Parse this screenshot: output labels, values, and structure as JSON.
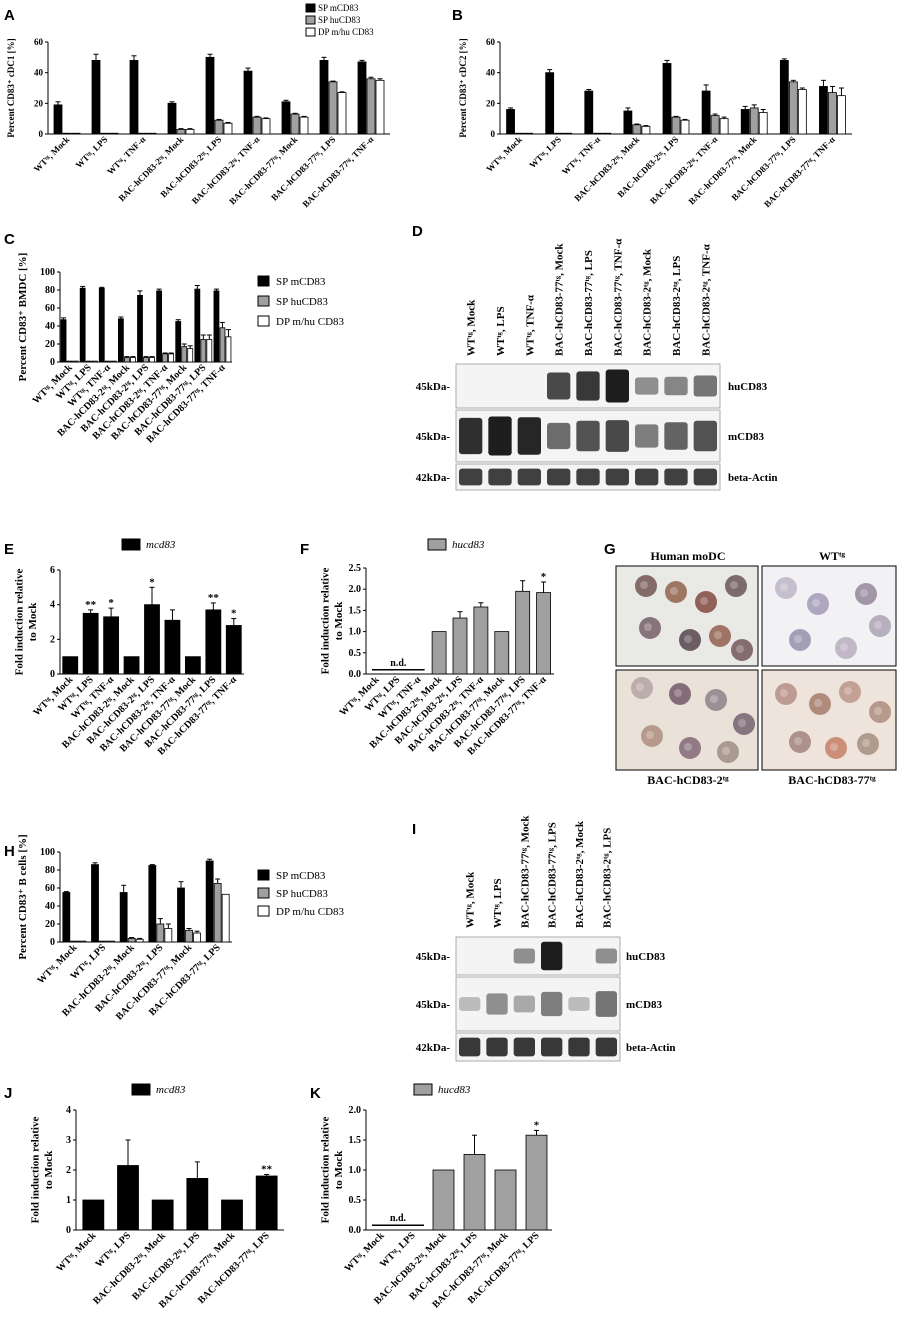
{
  "legend_items": {
    "sp_m": "SP mCD83",
    "sp_hu": "SP huCD83",
    "dp": "DP m/hu CD83",
    "mcd83": "mcd83",
    "hucd83": "hucd83"
  },
  "colors": {
    "sp_m": "#000000",
    "sp_hu": "#a0a0a0",
    "dp": "#ffffff"
  },
  "chart_data": [
    {
      "panel": "A",
      "type": "bar",
      "ylabel": "Percent CD83⁺ cDC1 [%]",
      "ylim": [
        0,
        60
      ],
      "yticks": [
        0,
        20,
        40,
        60
      ],
      "categories": [
        "WTᵗᵍ, Mock",
        "WTᵗᵍ, LPS",
        "WTᵗᵍ, TNF-α",
        "BAC-hCD83-2ᵗᵍ, Mock",
        "BAC-hCD83-2ᵗᵍ, LPS",
        "BAC-hCD83-2ᵗᵍ, TNF-α",
        "BAC-hCD83-77ᵗᵍ, Mock",
        "BAC-hCD83-77ᵗᵍ, LPS",
        "BAC-hCD83-77ᵗᵍ, TNF-α"
      ],
      "series": [
        {
          "name": "SP mCD83",
          "values": [
            19,
            48,
            48,
            20,
            50,
            41,
            21,
            48,
            47
          ],
          "err": [
            2,
            4,
            3,
            1,
            2,
            2,
            1,
            2,
            1
          ]
        },
        {
          "name": "SP huCD83",
          "values": [
            0.5,
            0.5,
            0.5,
            3,
            9,
            11,
            13,
            34,
            36
          ],
          "err": [
            0,
            0,
            0,
            0.5,
            0.5,
            0.5,
            0.5,
            0.5,
            1
          ]
        },
        {
          "name": "DP m/hu CD83",
          "values": [
            0.5,
            0.5,
            0.5,
            3,
            7,
            10,
            11,
            27,
            35
          ],
          "err": [
            0,
            0,
            0,
            0.5,
            0.5,
            0.5,
            0.5,
            0.5,
            1
          ]
        }
      ]
    },
    {
      "panel": "B",
      "type": "bar",
      "ylabel": "Percent CD83⁺ cDC2 [%]",
      "ylim": [
        0,
        60
      ],
      "yticks": [
        0,
        20,
        40,
        60
      ],
      "categories": [
        "WTᵗᵍ, Mock",
        "WTᵗᵍ, LPS",
        "WTᵗᵍ, TNF-α",
        "BAC-hCD83-2ᵗᵍ, Mock",
        "BAC-hCD83-2ᵗᵍ, LPS",
        "BAC-hCD83-2ᵗᵍ, TNF-α",
        "BAC-hCD83-77ᵗᵍ, Mock",
        "BAC-hCD83-77ᵗᵍ, LPS",
        "BAC-hCD83-77ᵗᵍ, TNF-α"
      ],
      "series": [
        {
          "name": "SP mCD83",
          "values": [
            16,
            40,
            28,
            15,
            46,
            28,
            16,
            48,
            31
          ],
          "err": [
            1,
            2,
            1,
            2,
            2,
            4,
            2,
            1,
            4
          ]
        },
        {
          "name": "SP huCD83",
          "values": [
            0.5,
            0.5,
            0.5,
            6,
            11,
            12,
            17,
            34,
            27
          ],
          "err": [
            0,
            0,
            0,
            0.5,
            0.5,
            1,
            2,
            1,
            4
          ]
        },
        {
          "name": "DP m/hu CD83",
          "values": [
            0.5,
            0.5,
            0.5,
            5,
            9,
            10,
            14,
            29,
            25
          ],
          "err": [
            0,
            0,
            0,
            0.5,
            0.5,
            1,
            2,
            1,
            5
          ]
        }
      ]
    },
    {
      "panel": "C",
      "type": "bar",
      "ylabel": "Percent CD83⁺ BMDC [%]",
      "ylim": [
        0,
        100
      ],
      "yticks": [
        0,
        20,
        40,
        60,
        80,
        100
      ],
      "categories": [
        "WTᵗᵍ, Mock",
        "WTᵗᵍ, LPS",
        "WTᵗᵍ, TNF-α",
        "BAC-hCD83-2ᵗᵍ, Mock",
        "BAC-hCD83-2ᵗᵍ, LPS",
        "BAC-hCD83-2ᵗᵍ, TNF-α",
        "BAC-hCD83-77ᵗᵍ, Mock",
        "BAC-hCD83-77ᵗᵍ, LPS",
        "BAC-hCD83-77ᵗᵍ, TNF-α"
      ],
      "series": [
        {
          "name": "SP mCD83",
          "values": [
            47,
            82,
            82,
            48,
            74,
            79,
            45,
            81,
            79
          ],
          "err": [
            2,
            2,
            1,
            2,
            5,
            2,
            2,
            4,
            2
          ]
        },
        {
          "name": "SP huCD83",
          "values": [
            1,
            1,
            1,
            5,
            5,
            9,
            17,
            25,
            38
          ],
          "err": [
            0,
            0,
            0,
            1,
            1,
            1,
            3,
            5,
            6
          ]
        },
        {
          "name": "DP m/hu CD83",
          "values": [
            1,
            1,
            1,
            5,
            5,
            9,
            15,
            25,
            28
          ],
          "err": [
            0,
            0,
            0,
            1,
            1,
            1,
            3,
            5,
            8
          ]
        }
      ]
    },
    {
      "panel": "E",
      "type": "bar",
      "ylabel": "Fold induction relative to Mock",
      "ylim": [
        0,
        6
      ],
      "yticks": [
        0,
        2,
        4,
        6
      ],
      "categories": [
        "WTᵗᵍ, Mock",
        "WTᵗᵍ, LPS",
        "WTᵗᵍ, TNF-α",
        "BAC-hCD83-2ᵗᵍ, Mock",
        "BAC-hCD83-2ᵗᵍ, LPS",
        "BAC-hCD83-2ᵗᵍ, TNF-α",
        "BAC-hCD83-77ᵗᵍ, Mock",
        "BAC-hCD83-77ᵗᵍ, LPS",
        "BAC-hCD83-77ᵗᵍ, TNF-α"
      ],
      "series": [
        {
          "name": "mcd83",
          "values": [
            1,
            3.5,
            3.3,
            1,
            4.0,
            3.1,
            1,
            3.7,
            2.8
          ],
          "err": [
            0,
            0.2,
            0.5,
            0,
            1.0,
            0.6,
            0,
            0.4,
            0.4
          ]
        }
      ],
      "annotations": [
        "",
        "**",
        "*",
        "",
        "*",
        "",
        "",
        "**",
        "*"
      ]
    },
    {
      "panel": "F",
      "type": "bar",
      "ylabel": "Fold induction relative to Mock",
      "ylim": [
        0,
        2.5
      ],
      "yticks": [
        0.0,
        0.5,
        1.0,
        1.5,
        2.0,
        2.5
      ],
      "categories": [
        "WTᵗᵍ, Mock",
        "WTᵗᵍ, LPS",
        "WTᵗᵍ, TNF-α",
        "BAC-hCD83-2ᵗᵍ, Mock",
        "BAC-hCD83-2ᵗᵍ, LPS",
        "BAC-hCD83-2ᵗᵍ, TNF-α",
        "BAC-hCD83-77ᵗᵍ, Mock",
        "BAC-hCD83-77ᵗᵍ, LPS",
        "BAC-hCD83-77ᵗᵍ, TNF-α"
      ],
      "series": [
        {
          "name": "hucd83",
          "values": [
            null,
            null,
            null,
            1.0,
            1.32,
            1.58,
            1.0,
            1.95,
            1.92
          ],
          "err": [
            0,
            0,
            0,
            0,
            0.15,
            0.1,
            0,
            0.25,
            0.25
          ]
        }
      ],
      "annotations": [
        "",
        "",
        "",
        "",
        "",
        "",
        "",
        "",
        "*"
      ],
      "nd_label": "n.d."
    },
    {
      "panel": "H",
      "type": "bar",
      "ylabel": "Percent CD83⁺ B cells [%]",
      "ylim": [
        0,
        100
      ],
      "yticks": [
        0,
        20,
        40,
        60,
        80,
        100
      ],
      "categories": [
        "WTᵗᵍ, Mock",
        "WTᵗᵍ, LPS",
        "BAC-hCD83-2ᵗᵍ, Mock",
        "BAC-hCD83-2ᵗᵍ, LPS",
        "BAC-hCD83-77ᵗᵍ, Mock",
        "BAC-hCD83-77ᵗᵍ, LPS"
      ],
      "series": [
        {
          "name": "SP mCD83",
          "values": [
            55,
            86,
            55,
            85,
            60,
            90
          ],
          "err": [
            1,
            2,
            8,
            1,
            7,
            2
          ]
        },
        {
          "name": "SP huCD83",
          "values": [
            1,
            1,
            4,
            20,
            13,
            65
          ],
          "err": [
            0,
            0,
            1,
            6,
            2,
            5
          ]
        },
        {
          "name": "DP m/hu CD83",
          "values": [
            1,
            1,
            3,
            15,
            10,
            53
          ],
          "err": [
            0,
            0,
            1,
            5,
            2,
            0
          ]
        }
      ]
    },
    {
      "panel": "J",
      "type": "bar",
      "ylabel": "Fold induction relative to Mock",
      "ylim": [
        0,
        4
      ],
      "yticks": [
        0,
        1,
        2,
        3,
        4
      ],
      "categories": [
        "WTᵗᵍ, Mock",
        "WTᵗᵍ, LPS",
        "BAC-hCD83-2ᵗᵍ, Mock",
        "BAC-hCD83-2ᵗᵍ, LPS",
        "BAC-hCD83-77ᵗᵍ, Mock",
        "BAC-hCD83-77ᵗᵍ, LPS"
      ],
      "series": [
        {
          "name": "mcd83",
          "values": [
            1,
            2.15,
            1,
            1.72,
            1,
            1.8
          ],
          "err": [
            0,
            0.85,
            0,
            0.55,
            0,
            0.05
          ]
        }
      ],
      "annotations": [
        "",
        "",
        "",
        "",
        "",
        "**"
      ]
    },
    {
      "panel": "K",
      "type": "bar",
      "ylabel": "Fold induction relative to Mock",
      "ylim": [
        0,
        2.0
      ],
      "yticks": [
        0.0,
        0.5,
        1.0,
        1.5,
        2.0
      ],
      "categories": [
        "WTᵗᵍ, Mock",
        "WTᵗᵍ, LPS",
        "BAC-hCD83-2ᵗᵍ, Mock",
        "BAC-hCD83-2ᵗᵍ, LPS",
        "BAC-hCD83-77ᵗᵍ, Mock",
        "BAC-hCD83-77ᵗᵍ, LPS"
      ],
      "series": [
        {
          "name": "hucd83",
          "values": [
            null,
            null,
            1.0,
            1.26,
            1.0,
            1.58
          ],
          "err": [
            0,
            0,
            0,
            0.32,
            0,
            0.08
          ]
        }
      ],
      "annotations": [
        "",
        "",
        "",
        "",
        "",
        "*"
      ],
      "nd_label": "n.d."
    }
  ],
  "blots": {
    "D": {
      "lanes": [
        "WTᵗᵍ, Mock",
        "WTᵗᵍ, LPS",
        "WTᵗᵍ, TNF-α",
        "BAC-hCD83-77ᵗᵍ, Mock",
        "BAC-hCD83-77ᵗᵍ, LPS",
        "BAC-hCD83-77ᵗᵍ, TNF-α",
        "BAC-hCD83-2ᵗᵍ, Mock",
        "BAC-hCD83-2ᵗᵍ, LPS",
        "BAC-hCD83-2ᵗᵍ, TNF-α"
      ],
      "rows": [
        {
          "marker": "45kDa-",
          "label": "huCD83",
          "intensity": [
            0,
            0,
            0,
            0.75,
            0.85,
            1.0,
            0.35,
            0.4,
            0.5
          ]
        },
        {
          "marker": "45kDa-",
          "label": "mCD83",
          "intensity": [
            0.9,
            1.0,
            0.95,
            0.55,
            0.7,
            0.75,
            0.45,
            0.6,
            0.7
          ]
        },
        {
          "marker": "42kDa-",
          "label": "beta-Actin",
          "intensity": [
            0.8,
            0.8,
            0.8,
            0.8,
            0.8,
            0.8,
            0.8,
            0.8,
            0.8
          ]
        }
      ]
    },
    "I": {
      "lanes": [
        "WTᵗᵍ, Mock",
        "WTᵗᵍ, LPS",
        "BAC-hCD83-77ᵗᵍ, Mock",
        "BAC-hCD83-77ᵗᵍ, LPS",
        "BAC-hCD83-2ᵗᵍ, Mock",
        "BAC-hCD83-2ᵗᵍ, LPS"
      ],
      "rows": [
        {
          "marker": "45kDa-",
          "label": "huCD83",
          "intensity": [
            0,
            0,
            0.35,
            1.0,
            0,
            0.35
          ]
        },
        {
          "marker": "45kDa-",
          "label": "mCD83",
          "intensity": [
            0.1,
            0.35,
            0.2,
            0.45,
            0.1,
            0.5
          ]
        },
        {
          "marker": "42kDa-",
          "label": "beta-Actin",
          "intensity": [
            0.85,
            0.85,
            0.85,
            0.85,
            0.85,
            0.85
          ]
        }
      ]
    }
  },
  "micrographs": {
    "titles": [
      "Human moDC",
      "WTᵗᵍ"
    ],
    "captions": [
      "BAC-hCD83-2ᵗᵍ",
      "BAC-hCD83-77ᵗᵍ"
    ]
  },
  "panel_labels": [
    "A",
    "B",
    "C",
    "D",
    "E",
    "F",
    "G",
    "H",
    "I",
    "J",
    "K"
  ]
}
